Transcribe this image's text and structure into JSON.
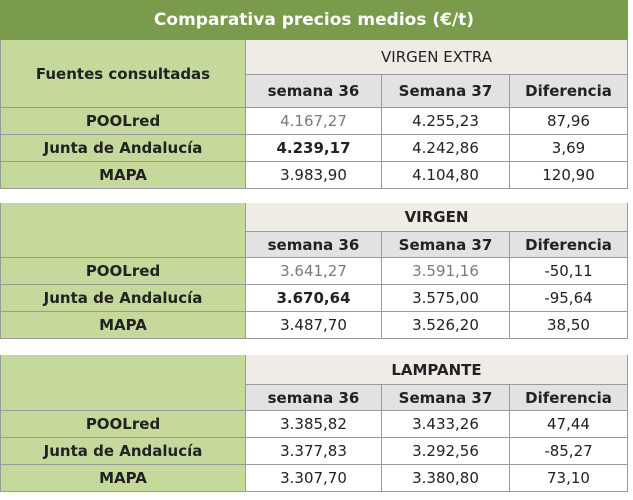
{
  "title": "Comparativa precios medios (€/t)",
  "sections": [
    {
      "source_header": "Fuentes consultadas",
      "category": "VIRGEN EXTRA",
      "columns": [
        "semana 36",
        "Semana 37",
        "Diferencia"
      ],
      "rows": [
        {
          "source": "POOLred",
          "values": [
            "4.167,27",
            "4.255,23",
            "87,96"
          ]
        },
        {
          "source": "Junta de Andalucía",
          "values": [
            "4.239,17",
            "4.242,86",
            "3,69"
          ]
        },
        {
          "source": "MAPA",
          "values": [
            "3.983,90",
            "4.104,80",
            "120,90"
          ]
        }
      ]
    },
    {
      "category": "VIRGEN",
      "columns": [
        "semana 36",
        "Semana 37",
        "Diferencia"
      ],
      "rows": [
        {
          "source": "POOLred",
          "values": [
            "3.641,27",
            "3.591,16",
            "-50,11"
          ]
        },
        {
          "source": "Junta de Andalucía",
          "values": [
            "3.670,64",
            "3.575,00",
            "-95,64"
          ]
        },
        {
          "source": "MAPA",
          "values": [
            "3.487,70",
            "3.526,20",
            "38,50"
          ]
        }
      ]
    },
    {
      "category": "LAMPANTE",
      "columns": [
        "semana 36",
        "Semana 37",
        "Diferencia"
      ],
      "rows": [
        {
          "source": "POOLred",
          "values": [
            "3.385,82",
            "3.433,26",
            "47,44"
          ]
        },
        {
          "source": "Junta de Andalucía",
          "values": [
            "3.377,83",
            "3.292,56",
            "-85,27"
          ]
        },
        {
          "source": "MAPA",
          "values": [
            "3.307,70",
            "3.380,80",
            "73,10"
          ]
        }
      ]
    }
  ]
}
